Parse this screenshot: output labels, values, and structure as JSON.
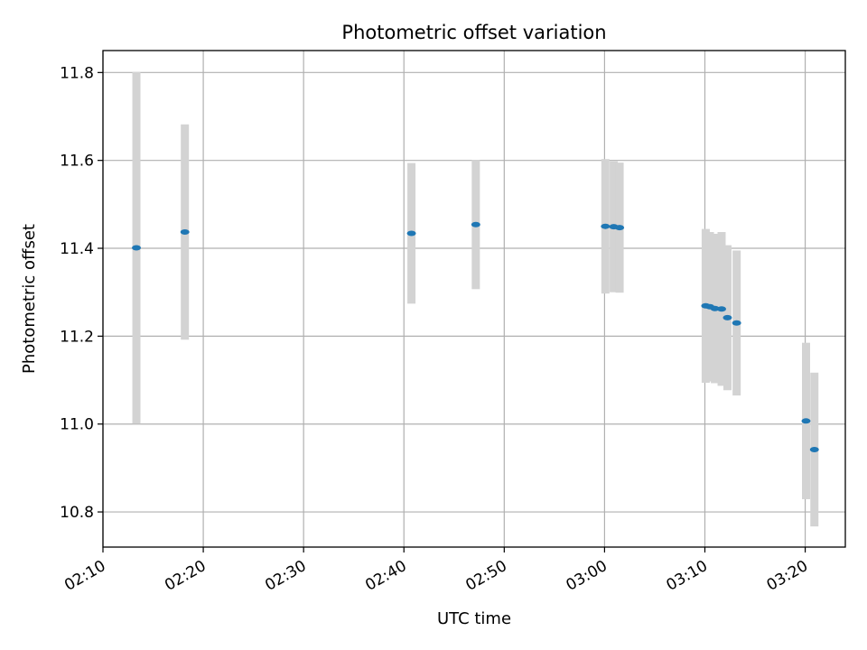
{
  "chart_data": {
    "type": "scatter",
    "title": "Photometric offset variation",
    "xlabel": "UTC time",
    "ylabel": "Photometric offset",
    "x_unit": "minutes after 00:00 UTC",
    "xlim": [
      "02:10",
      "03:24"
    ],
    "ylim": [
      10.72,
      11.85
    ],
    "x_ticks": [
      "02:10",
      "02:20",
      "02:30",
      "02:40",
      "02:50",
      "03:00",
      "03:10",
      "03:20"
    ],
    "y_ticks": [
      "10.8",
      "11.0",
      "11.2",
      "11.4",
      "11.6",
      "11.8"
    ],
    "grid": true,
    "point_color": "#1f77b4",
    "errorbar_color": "#d3d3d3",
    "series": [
      {
        "points": [
          {
            "t": "02:13:20",
            "y": 11.401,
            "err": 0.4
          },
          {
            "t": "02:18:10",
            "y": 11.437,
            "err": 0.245
          },
          {
            "t": "02:40:45",
            "y": 11.434,
            "err": 0.16
          },
          {
            "t": "02:47:10",
            "y": 11.454,
            "err": 0.147
          },
          {
            "t": "03:00:05",
            "y": 11.45,
            "err": 0.153
          },
          {
            "t": "03:00:55",
            "y": 11.449,
            "err": 0.149
          },
          {
            "t": "03:01:30",
            "y": 11.447,
            "err": 0.148
          },
          {
            "t": "03:10:05",
            "y": 11.269,
            "err": 0.175
          },
          {
            "t": "03:10:30",
            "y": 11.267,
            "err": 0.17
          },
          {
            "t": "03:11:00",
            "y": 11.263,
            "err": 0.17
          },
          {
            "t": "03:11:40",
            "y": 11.262,
            "err": 0.175
          },
          {
            "t": "03:12:15",
            "y": 11.242,
            "err": 0.165
          },
          {
            "t": "03:13:10",
            "y": 11.23,
            "err": 0.165
          },
          {
            "t": "03:20:05",
            "y": 11.007,
            "err": 0.178
          },
          {
            "t": "03:20:55",
            "y": 10.942,
            "err": 0.175
          }
        ]
      }
    ]
  }
}
